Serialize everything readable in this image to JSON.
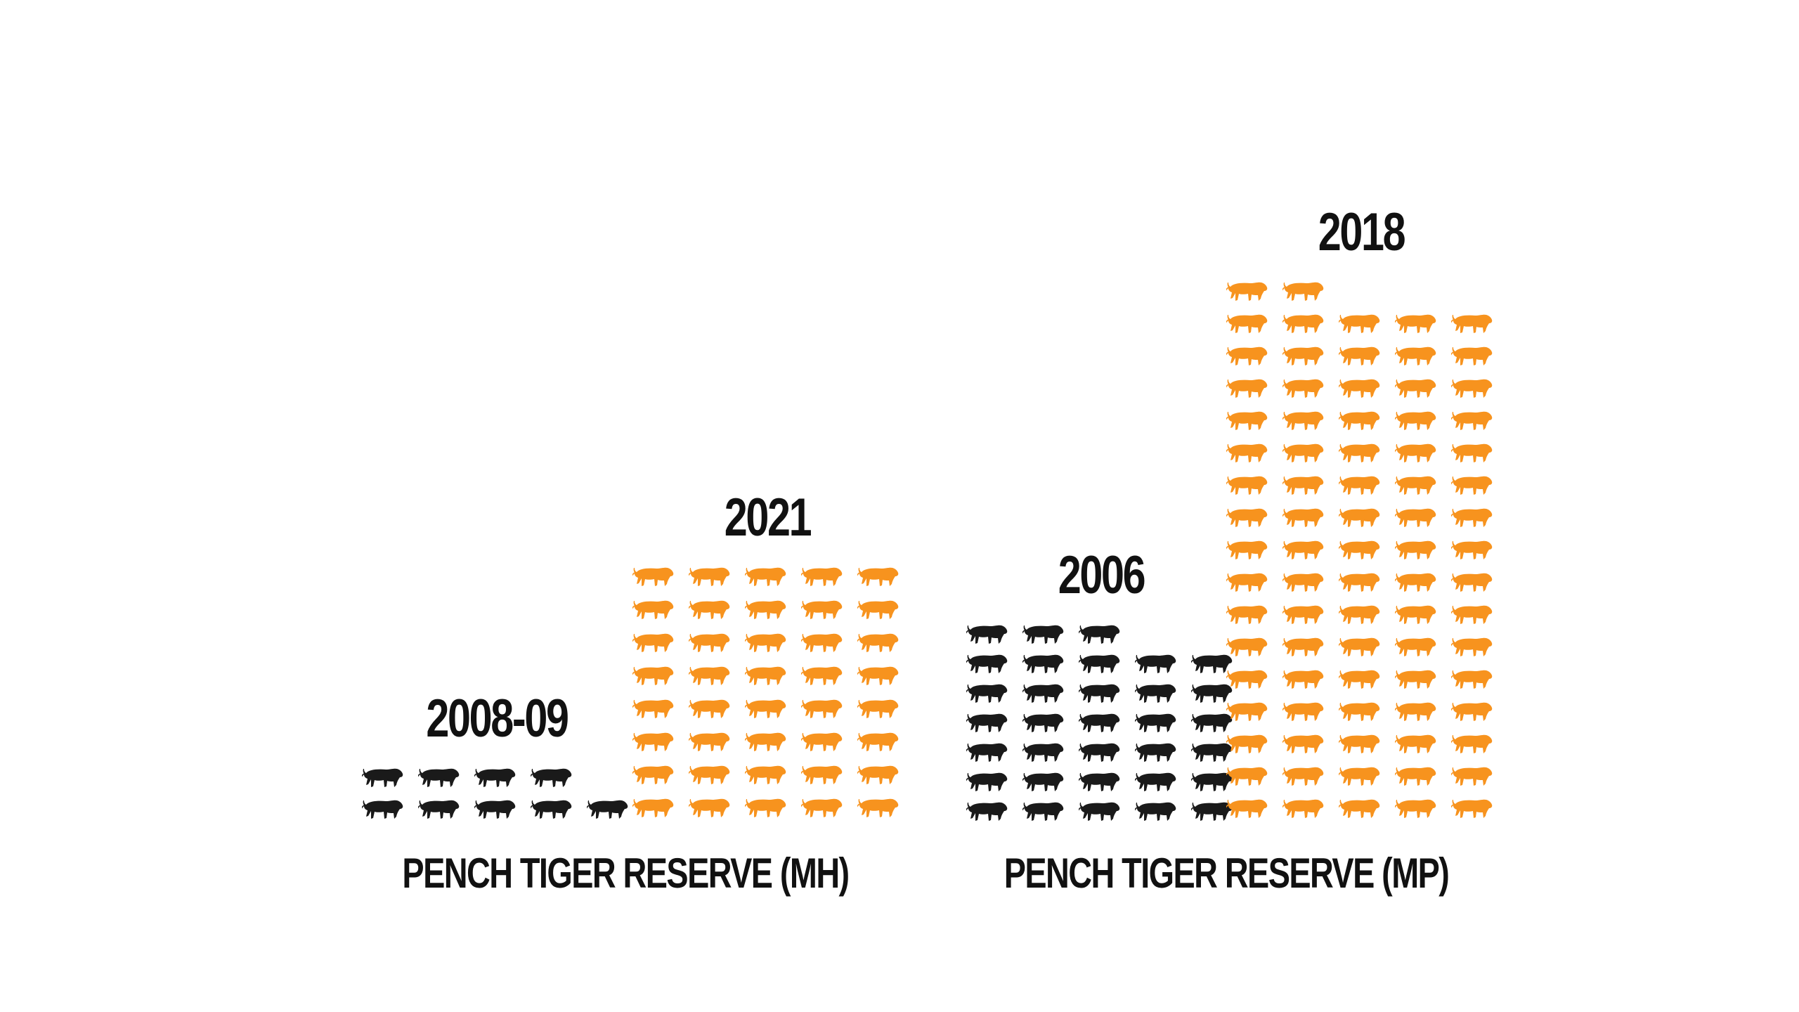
{
  "chart_data": {
    "type": "bar",
    "subtype": "pictograph",
    "unit": "tigers (one icon per tiger)",
    "groups": [
      {
        "name": "PENCH TIGER RESERVE (MH)",
        "bars": [
          {
            "label": "2008-09",
            "value": 9,
            "color": "#1a1a1a"
          },
          {
            "label": "2021",
            "value": 40,
            "color": "#f7931e"
          }
        ]
      },
      {
        "name": "PENCH TIGER RESERVE (MP)",
        "bars": [
          {
            "label": "2006",
            "value": 33,
            "color": "#1a1a1a"
          },
          {
            "label": "2018",
            "value": 82,
            "color": "#f7931e"
          }
        ]
      }
    ],
    "icon": "tiger-icon",
    "icons_per_row": 5,
    "legend": "none",
    "grid": false
  }
}
